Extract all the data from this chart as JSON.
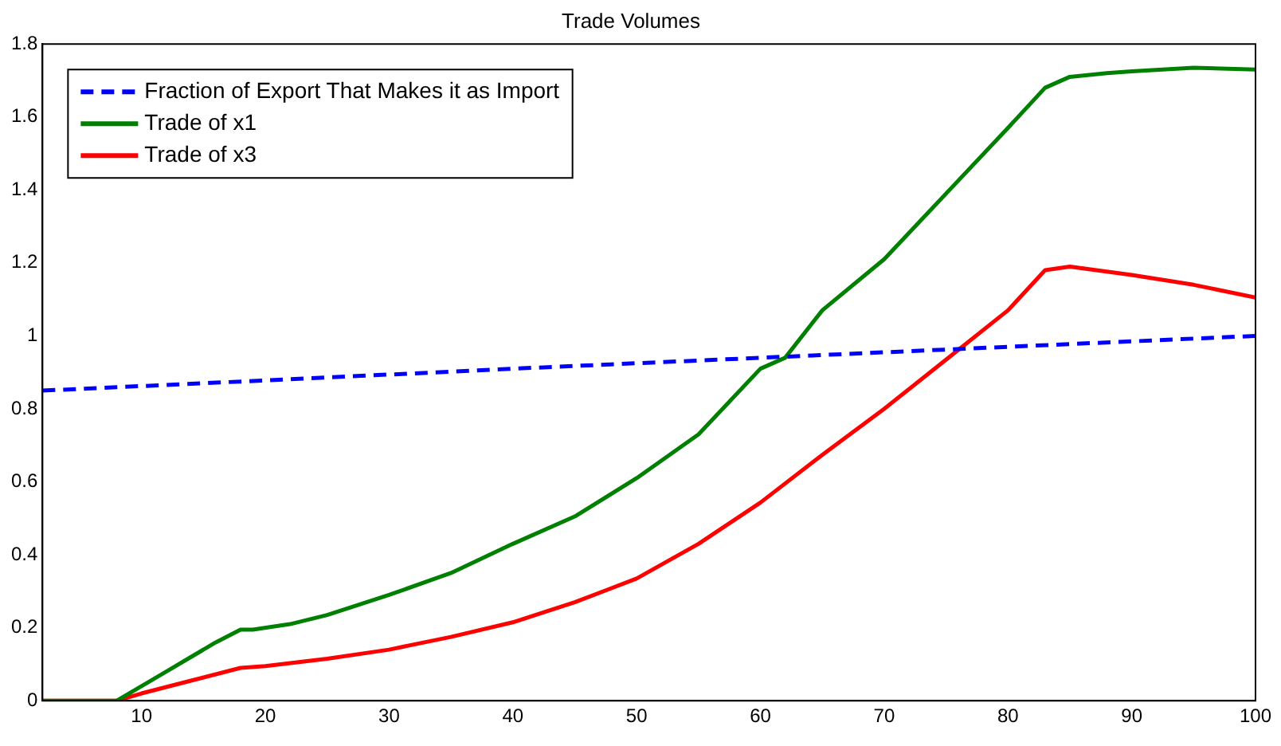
{
  "chart_data": {
    "type": "line",
    "title": "Trade Volumes",
    "xlim": [
      2,
      100
    ],
    "xticks": [
      10,
      20,
      30,
      40,
      50,
      60,
      70,
      80,
      90,
      100
    ],
    "ylim": [
      0,
      1.8
    ],
    "yticks": [
      0,
      0.2,
      0.4,
      0.6,
      0.8,
      1,
      1.2,
      1.4,
      1.6,
      1.8
    ],
    "grid": false,
    "legend": "top left",
    "marker": "none",
    "series": [
      {
        "name": "Fraction of Export That Makes it as Import",
        "color": "#0000ff",
        "line_style": "dashed",
        "x": [
          2,
          20,
          40,
          50,
          60,
          70,
          80,
          90,
          100
        ],
        "values": [
          0.85,
          0.878,
          0.91,
          0.925,
          0.94,
          0.955,
          0.97,
          0.985,
          1.0
        ]
      },
      {
        "name": "Trade of x1",
        "color": "#008000",
        "line_style": "solid",
        "x": [
          2,
          8,
          10,
          12,
          14,
          16,
          18,
          19,
          22,
          25,
          30,
          35,
          40,
          45,
          50,
          55,
          60,
          62,
          65,
          70,
          75,
          80,
          83,
          85,
          88,
          90,
          95,
          100
        ],
        "values": [
          0,
          0,
          0.04,
          0.08,
          0.12,
          0.16,
          0.195,
          0.195,
          0.21,
          0.235,
          0.29,
          0.35,
          0.43,
          0.505,
          0.61,
          0.73,
          0.91,
          0.94,
          1.07,
          1.21,
          1.39,
          1.57,
          1.68,
          1.71,
          1.72,
          1.725,
          1.735,
          1.73
        ]
      },
      {
        "name": "Trade of x3",
        "color": "#ff0000",
        "line_style": "solid",
        "x": [
          2,
          8,
          10,
          14,
          18,
          20,
          25,
          30,
          35,
          40,
          45,
          50,
          55,
          60,
          65,
          70,
          75,
          80,
          83,
          85,
          90,
          95,
          100
        ],
        "values": [
          0,
          0,
          0.02,
          0.055,
          0.09,
          0.095,
          0.115,
          0.14,
          0.175,
          0.215,
          0.27,
          0.335,
          0.43,
          0.543,
          0.674,
          0.8,
          0.935,
          1.07,
          1.18,
          1.19,
          1.167,
          1.14,
          1.105
        ]
      }
    ]
  }
}
